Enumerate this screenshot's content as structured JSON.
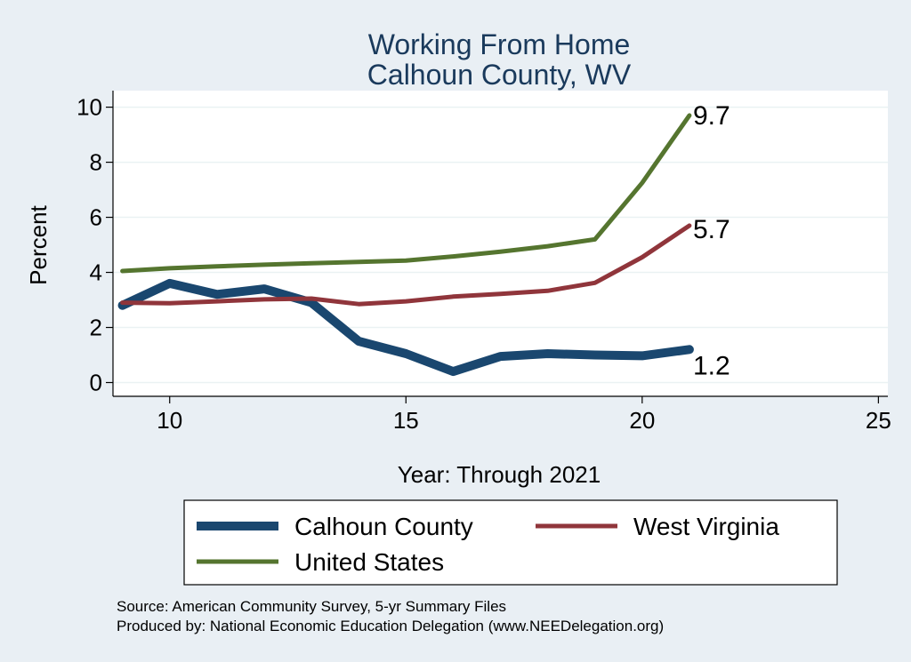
{
  "chart_data": {
    "type": "line",
    "title": [
      "Working From Home",
      "Calhoun County, WV"
    ],
    "xlabel": "Year: Through 2021",
    "ylabel": "Percent",
    "xlim": [
      8.8,
      25.2
    ],
    "ylim": [
      -0.5,
      10.6
    ],
    "xticks": [
      10,
      15,
      20,
      25
    ],
    "yticks": [
      0,
      2,
      4,
      6,
      8,
      10
    ],
    "grid": "horizontal",
    "legend_position": "bottom",
    "series": [
      {
        "name": "Calhoun County",
        "color": "#1a476f",
        "x": [
          9,
          10,
          11,
          12,
          13,
          14,
          15,
          16,
          17,
          18,
          19,
          20,
          21
        ],
        "values": [
          2.8,
          3.6,
          3.2,
          3.4,
          2.9,
          1.5,
          1.05,
          0.4,
          0.95,
          1.05,
          1.0,
          0.97,
          1.2
        ],
        "end_label": "1.2"
      },
      {
        "name": "West Virginia",
        "color": "#90353b",
        "x": [
          9,
          10,
          11,
          12,
          13,
          14,
          15,
          16,
          17,
          18,
          19,
          20,
          21
        ],
        "values": [
          2.9,
          2.88,
          2.95,
          3.02,
          3.05,
          2.85,
          2.95,
          3.12,
          3.22,
          3.33,
          3.62,
          4.55,
          5.7
        ],
        "end_label": "5.7"
      },
      {
        "name": "United States",
        "color": "#55752f",
        "x": [
          9,
          10,
          11,
          12,
          13,
          14,
          15,
          16,
          17,
          18,
          19,
          20,
          21
        ],
        "values": [
          4.05,
          4.15,
          4.22,
          4.28,
          4.33,
          4.38,
          4.43,
          4.58,
          4.75,
          4.95,
          5.2,
          7.25,
          9.7
        ],
        "end_label": "9.7"
      }
    ]
  },
  "caption": {
    "source": "Source: American Community Survey, 5-yr Summary Files",
    "produced": "Produced by: National Economic Education Delegation (www.NEEDelegation.org)"
  }
}
